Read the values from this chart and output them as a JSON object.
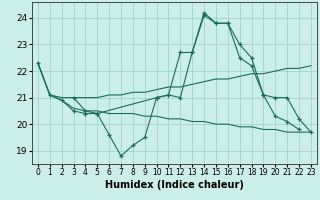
{
  "xlabel": "Humidex (Indice chaleur)",
  "ylabel": "",
  "xlim": [
    -0.5,
    23.5
  ],
  "ylim": [
    18.5,
    24.6
  ],
  "yticks": [
    19,
    20,
    21,
    22,
    23,
    24
  ],
  "xticks": [
    0,
    1,
    2,
    3,
    4,
    5,
    6,
    7,
    8,
    9,
    10,
    11,
    12,
    13,
    14,
    15,
    16,
    17,
    18,
    19,
    20,
    21,
    22,
    23
  ],
  "background_color": "#cceee8",
  "grid_color": "#99cccc",
  "line_color": "#1a6b5a",
  "lines": [
    {
      "x": [
        0,
        1,
        2,
        3,
        4,
        5,
        6,
        7,
        8,
        9,
        10,
        11,
        12,
        13,
        14,
        15,
        16,
        17,
        18,
        19,
        20,
        21,
        22
      ],
      "y": [
        22.3,
        21.1,
        20.9,
        20.5,
        20.4,
        20.4,
        19.6,
        18.8,
        19.2,
        19.5,
        21.0,
        21.1,
        22.7,
        22.7,
        24.2,
        23.8,
        23.8,
        23.0,
        22.5,
        21.1,
        20.3,
        20.1,
        19.8
      ],
      "marker": true
    },
    {
      "x": [
        0,
        1,
        2,
        3,
        4,
        5,
        6,
        7,
        8,
        9,
        10,
        11,
        12,
        13,
        14,
        15,
        16,
        17,
        18,
        19,
        20,
        21,
        22,
        23
      ],
      "y": [
        22.3,
        21.1,
        20.9,
        20.6,
        20.5,
        20.5,
        20.4,
        20.4,
        20.4,
        20.3,
        20.3,
        20.2,
        20.2,
        20.1,
        20.1,
        20.0,
        20.0,
        19.9,
        19.9,
        19.8,
        19.8,
        19.7,
        19.7,
        19.7
      ],
      "marker": false
    },
    {
      "x": [
        0,
        1,
        2,
        3,
        4,
        5,
        6,
        7,
        8,
        9,
        10,
        11,
        12,
        13,
        14,
        15,
        16,
        17,
        18,
        19,
        20,
        21,
        22,
        23
      ],
      "y": [
        22.3,
        21.1,
        21.0,
        21.0,
        21.0,
        21.0,
        21.1,
        21.1,
        21.2,
        21.2,
        21.3,
        21.4,
        21.4,
        21.5,
        21.6,
        21.7,
        21.7,
        21.8,
        21.9,
        21.9,
        22.0,
        22.1,
        22.1,
        22.2
      ],
      "marker": false
    },
    {
      "x": [
        3,
        4,
        5,
        10,
        11,
        12,
        13,
        14,
        15,
        16,
        17,
        18,
        19,
        20,
        21,
        22,
        23
      ],
      "y": [
        21.0,
        20.5,
        20.4,
        21.0,
        21.1,
        21.0,
        22.7,
        24.1,
        23.8,
        23.8,
        22.5,
        22.2,
        21.1,
        21.0,
        21.0,
        20.2,
        19.7
      ],
      "marker": true
    }
  ]
}
